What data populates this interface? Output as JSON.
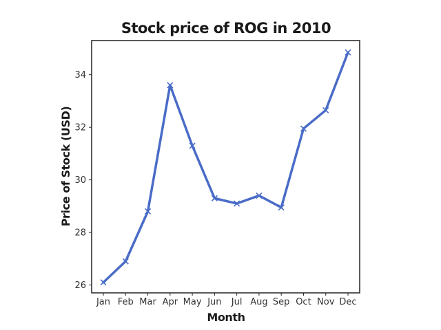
{
  "chart_data": {
    "type": "line",
    "title": "Stock price of ROG in 2010",
    "xlabel": "Month",
    "ylabel": "Price of Stock (USD)",
    "categories": [
      "Jan",
      "Feb",
      "Mar",
      "Apr",
      "May",
      "Jun",
      "Jul",
      "Aug",
      "Sep",
      "Oct",
      "Nov",
      "Dec"
    ],
    "series": [
      {
        "values": [
          26.1,
          26.9,
          28.8,
          33.6,
          31.3,
          29.3,
          29.1,
          29.4,
          28.95,
          31.95,
          32.65,
          34.85
        ],
        "color": "#4a6cc8",
        "marker": "x"
      }
    ],
    "ylim": [
      25.7,
      35.3
    ],
    "yticks": [
      26,
      28,
      30,
      32,
      34
    ],
    "grid": false,
    "legend": "none"
  }
}
